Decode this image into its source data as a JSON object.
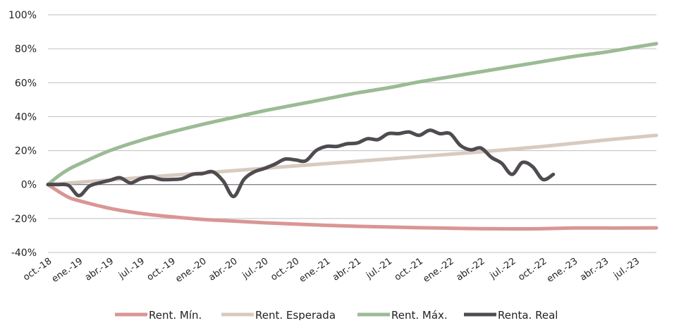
{
  "chart_data": {
    "type": "line",
    "title": "",
    "xlabel": "",
    "ylabel": "",
    "ylim": [
      -0.4,
      1.0
    ],
    "y_ticks": [
      -0.4,
      -0.2,
      0,
      0.2,
      0.4,
      0.6,
      0.8,
      1.0
    ],
    "y_tick_labels": [
      "-40%",
      "-20%",
      "0%",
      "20%",
      "40%",
      "60%",
      "80%",
      "100%"
    ],
    "x_range": [
      "2018-10",
      "2023-09"
    ],
    "x_tick_labels": [
      "oct.-18",
      "ene.-19",
      "abr.-19",
      "jul.-19",
      "oct.-19",
      "ene.-20",
      "abr.-20",
      "jul.-20",
      "oct.-20",
      "ene.-21",
      "abr.-21",
      "jul.-21",
      "oct.-21",
      "ene.-22",
      "abr.-22",
      "jul.-22",
      "oct.-22",
      "ene.-23",
      "abr.-23",
      "jul.-23"
    ],
    "grid": true,
    "legend_position": "bottom",
    "series": [
      {
        "name": "Rent. Mín.",
        "color": "#d99694",
        "x": [
          "2018-10",
          "2018-11",
          "2018-12",
          "2019-01",
          "2019-04",
          "2019-07",
          "2019-10",
          "2020-01",
          "2020-04",
          "2020-07",
          "2020-10",
          "2021-01",
          "2021-04",
          "2021-07",
          "2021-10",
          "2022-01",
          "2022-04",
          "2022-07",
          "2022-10",
          "2023-01",
          "2023-04",
          "2023-07",
          "2023-09"
        ],
        "values": [
          0,
          -0.04,
          -0.075,
          -0.095,
          -0.14,
          -0.17,
          -0.19,
          -0.205,
          -0.215,
          -0.225,
          -0.233,
          -0.24,
          -0.246,
          -0.25,
          -0.254,
          -0.257,
          -0.26,
          -0.261,
          -0.26,
          -0.256,
          -0.256,
          -0.256,
          -0.255
        ]
      },
      {
        "name": "Rent. Esperada",
        "color": "#d7cbc0",
        "x": [
          "2018-10",
          "2019-04",
          "2019-10",
          "2020-04",
          "2020-10",
          "2021-04",
          "2021-10",
          "2022-04",
          "2022-10",
          "2023-04",
          "2023-09"
        ],
        "values": [
          0,
          0.027,
          0.055,
          0.082,
          0.11,
          0.137,
          0.165,
          0.193,
          0.225,
          0.262,
          0.29
        ]
      },
      {
        "name": "Rent. Máx.",
        "color": "#9bbb95",
        "x": [
          "2018-10",
          "2018-11",
          "2018-12",
          "2019-01",
          "2019-04",
          "2019-07",
          "2019-10",
          "2020-01",
          "2020-04",
          "2020-07",
          "2020-10",
          "2021-01",
          "2021-04",
          "2021-07",
          "2021-10",
          "2022-01",
          "2022-04",
          "2022-07",
          "2022-10",
          "2023-01",
          "2023-04",
          "2023-07",
          "2023-09"
        ],
        "values": [
          0,
          0.05,
          0.09,
          0.12,
          0.2,
          0.26,
          0.31,
          0.355,
          0.395,
          0.435,
          0.47,
          0.505,
          0.54,
          0.57,
          0.605,
          0.635,
          0.665,
          0.695,
          0.725,
          0.755,
          0.78,
          0.81,
          0.83
        ]
      },
      {
        "name": "Renta. Real",
        "color": "#4f4b50",
        "x": [
          "2018-10",
          "2018-11",
          "2018-12",
          "2019-01",
          "2019-02",
          "2019-03",
          "2019-04",
          "2019-05",
          "2019-06",
          "2019-07",
          "2019-08",
          "2019-09",
          "2019-10",
          "2019-11",
          "2019-12",
          "2020-01",
          "2020-02",
          "2020-03",
          "2020-04",
          "2020-05",
          "2020-06",
          "2020-07",
          "2020-08",
          "2020-09",
          "2020-10",
          "2020-11",
          "2020-12",
          "2021-01",
          "2021-02",
          "2021-03",
          "2021-04",
          "2021-05",
          "2021-06",
          "2021-07",
          "2021-08",
          "2021-09",
          "2021-10",
          "2021-11",
          "2021-12",
          "2022-01",
          "2022-02",
          "2022-03",
          "2022-04",
          "2022-05",
          "2022-06",
          "2022-07",
          "2022-08",
          "2022-09",
          "2022-10",
          "2022-11"
        ],
        "values": [
          0,
          0,
          -0.005,
          -0.065,
          -0.01,
          0.01,
          0.025,
          0.04,
          0.01,
          0.035,
          0.045,
          0.03,
          0.03,
          0.035,
          0.06,
          0.065,
          0.075,
          0.02,
          -0.07,
          0.03,
          0.075,
          0.095,
          0.12,
          0.15,
          0.145,
          0.14,
          0.2,
          0.225,
          0.225,
          0.24,
          0.245,
          0.27,
          0.265,
          0.3,
          0.3,
          0.31,
          0.29,
          0.32,
          0.3,
          0.3,
          0.23,
          0.205,
          0.215,
          0.16,
          0.125,
          0.06,
          0.13,
          0.105,
          0.03,
          0.06
        ]
      }
    ]
  }
}
